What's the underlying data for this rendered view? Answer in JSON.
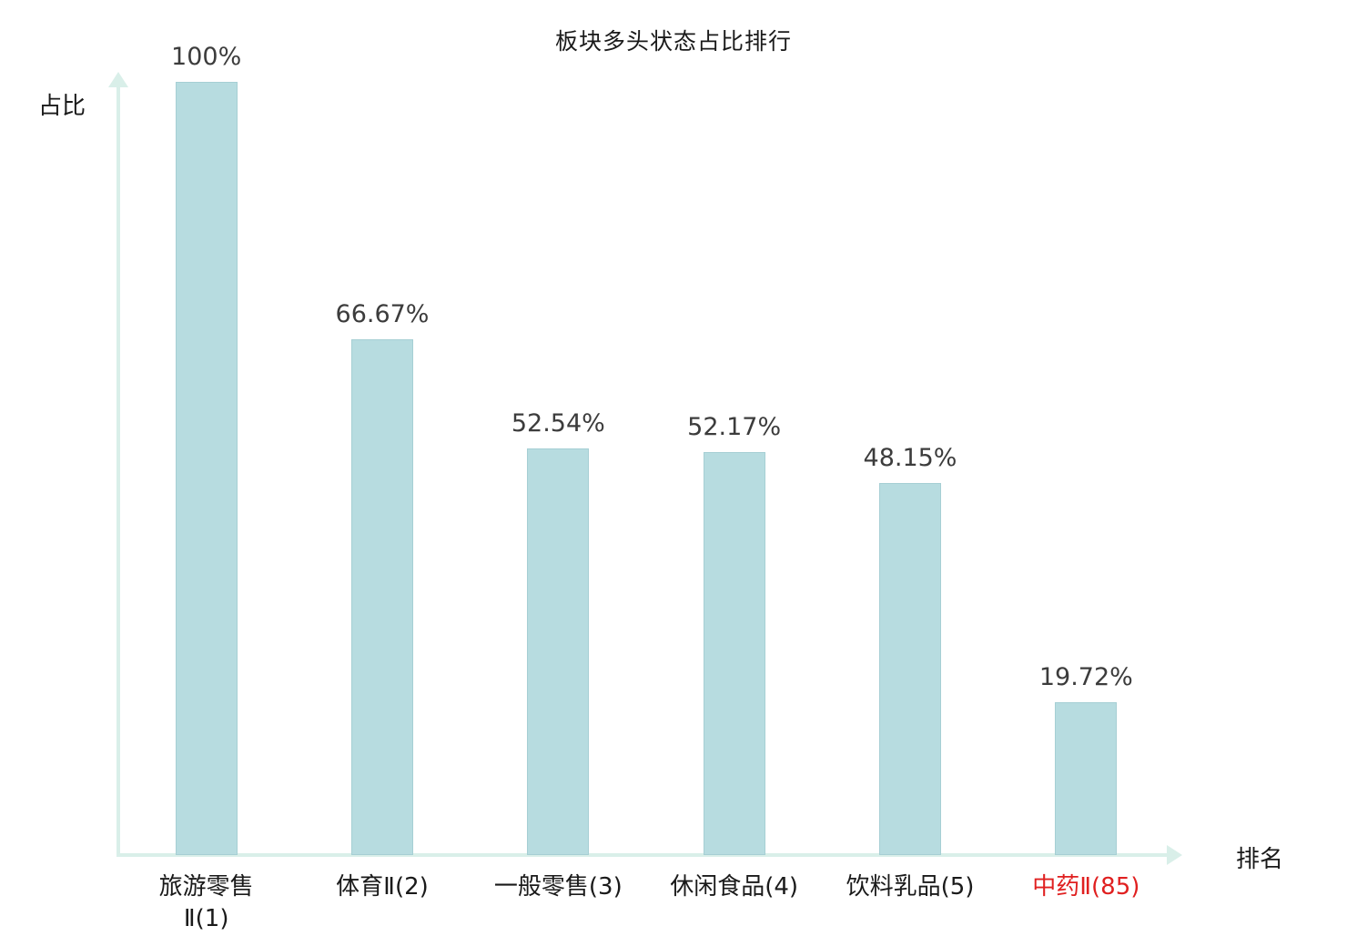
{
  "title": "板块多头状态占比排行",
  "axes": {
    "y_label": "占比",
    "x_label": "排名"
  },
  "chart_data": {
    "type": "bar",
    "title": "板块多头状态占比排行",
    "xlabel": "排名",
    "ylabel": "占比",
    "categories": [
      "旅游零售\nⅡ(1)",
      "体育Ⅱ(2)",
      "一般零售(3)",
      "休闲食品(4)",
      "饮料乳品(5)",
      "中药Ⅱ(85)"
    ],
    "values": [
      100,
      66.67,
      52.54,
      52.17,
      48.15,
      19.72
    ],
    "value_labels": [
      "100%",
      "66.67%",
      "52.54%",
      "52.17%",
      "48.15%",
      "19.72%"
    ],
    "category_colors": [
      "#1a1a1a",
      "#1a1a1a",
      "#1a1a1a",
      "#1a1a1a",
      "#1a1a1a",
      "#e02020"
    ],
    "ylim": [
      0,
      100
    ],
    "grid": false,
    "legend": "none",
    "colors": {
      "bar_fill": "#b7dce0",
      "bar_border": "#a6cfd4",
      "axis": "#d9efe9",
      "value_text": "#3c3c3c",
      "highlight_text": "#e02020"
    }
  }
}
